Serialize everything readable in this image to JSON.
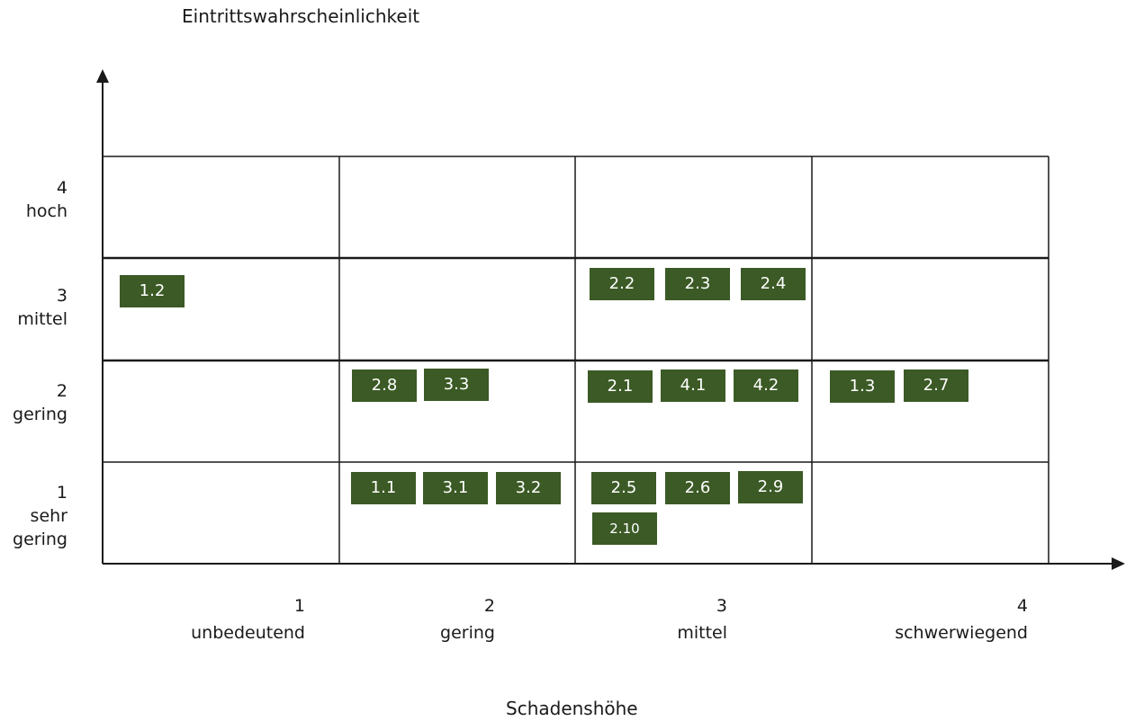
{
  "y_axis_title": "Eintrittswahrscheinlichkeit",
  "x_axis_title": "Schadenshöhe",
  "rows": [
    {
      "number": "4",
      "label": "hoch"
    },
    {
      "number": "3",
      "label": "mittel"
    },
    {
      "number": "2",
      "label": "gering"
    },
    {
      "number": "1",
      "label": "sehr gering"
    }
  ],
  "columns": [
    {
      "number": "1",
      "label": "unbedeutend"
    },
    {
      "number": "2",
      "label": "gering"
    },
    {
      "number": "3",
      "label": "mittel"
    },
    {
      "number": "4",
      "label": "schwerwiegend"
    }
  ],
  "risks": [
    {
      "id": "1.2",
      "probability": 3,
      "impact": 1
    },
    {
      "id": "2.2",
      "probability": 3,
      "impact": 3
    },
    {
      "id": "2.3",
      "probability": 3,
      "impact": 3
    },
    {
      "id": "2.4",
      "probability": 3,
      "impact": 3
    },
    {
      "id": "2.8",
      "probability": 2,
      "impact": 2
    },
    {
      "id": "3.3",
      "probability": 2,
      "impact": 2
    },
    {
      "id": "2.1",
      "probability": 2,
      "impact": 3
    },
    {
      "id": "4.1",
      "probability": 2,
      "impact": 3
    },
    {
      "id": "4.2",
      "probability": 2,
      "impact": 3
    },
    {
      "id": "1.3",
      "probability": 2,
      "impact": 4
    },
    {
      "id": "2.7",
      "probability": 2,
      "impact": 4
    },
    {
      "id": "1.1",
      "probability": 1,
      "impact": 2
    },
    {
      "id": "3.1",
      "probability": 1,
      "impact": 2
    },
    {
      "id": "3.2",
      "probability": 1,
      "impact": 2
    },
    {
      "id": "2.5",
      "probability": 1,
      "impact": 3
    },
    {
      "id": "2.6",
      "probability": 1,
      "impact": 3
    },
    {
      "id": "2.9",
      "probability": 1,
      "impact": 3
    },
    {
      "id": "2.10",
      "probability": 1,
      "impact": 3
    }
  ],
  "colors": {
    "tag_fill": "#3b5a25",
    "tag_text": "#ffffff",
    "grid_line": "#1a1a1a"
  }
}
